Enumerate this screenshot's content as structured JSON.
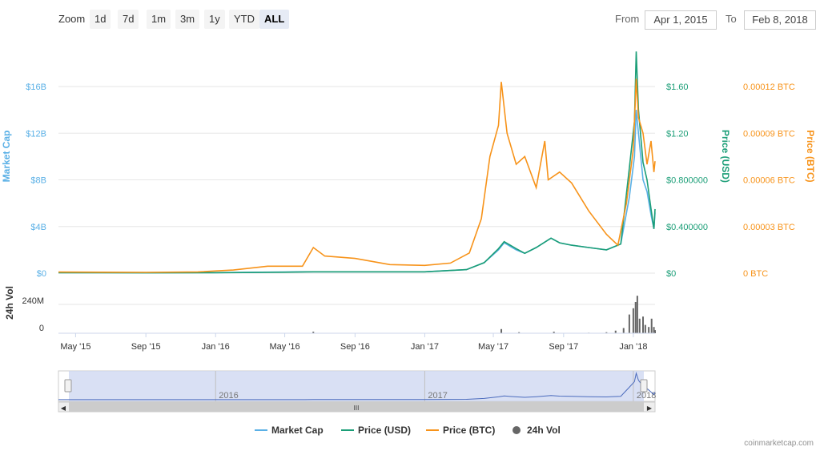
{
  "toolbar": {
    "zoom_label": "Zoom",
    "zoom_buttons": [
      "1d",
      "7d",
      "1m",
      "3m",
      "1y",
      "YTD",
      "ALL"
    ],
    "active_zoom": "ALL",
    "from_label": "From",
    "from_value": "Apr 1, 2015",
    "to_label": "To",
    "to_value": "Feb 8, 2018"
  },
  "colors": {
    "market_cap": "#5ab0e6",
    "price_usd": "#1b9e77",
    "price_btc": "#f7931a",
    "volume": "#666666",
    "navigator_fill": "#ccd6f0"
  },
  "chart_data": {
    "type": "line",
    "x_tick_labels": [
      "May '15",
      "Sep '15",
      "Jan '16",
      "May '16",
      "Sep '16",
      "Jan '17",
      "May '17",
      "Sep '17",
      "Jan '18"
    ],
    "axes": {
      "market_cap": {
        "label": "Market Cap",
        "ticks": [
          "$0",
          "$4B",
          "$8B",
          "$12B",
          "$16B"
        ],
        "ylim": [
          0,
          16000000000
        ]
      },
      "price_usd": {
        "label": "Price (USD)",
        "ticks": [
          "$0",
          "$0.400000",
          "$0.800000",
          "$1.20",
          "$1.60"
        ],
        "ylim": [
          0,
          1.6
        ]
      },
      "price_btc": {
        "label": "Price (BTC)",
        "ticks": [
          "0 BTC",
          "0.00003 BTC",
          "0.00006 BTC",
          "0.00009 BTC",
          "0.00012 BTC"
        ],
        "ylim": [
          0,
          0.00012
        ]
      },
      "volume": {
        "label": "24h Vol",
        "ticks": [
          "0",
          "240M"
        ]
      }
    },
    "series": [
      {
        "name": "Market Cap",
        "points": [
          [
            "2015-04-01",
            50000000.0
          ],
          [
            "2015-09-01",
            40000000.0
          ],
          [
            "2016-01-01",
            50000000.0
          ],
          [
            "2016-05-01",
            100000000.0
          ],
          [
            "2016-06-20",
            120000000.0
          ],
          [
            "2016-09-01",
            120000000.0
          ],
          [
            "2017-01-01",
            120000000.0
          ],
          [
            "2017-03-15",
            300000000.0
          ],
          [
            "2017-04-15",
            900000000.0
          ],
          [
            "2017-05-10",
            2000000000.0
          ],
          [
            "2017-05-20",
            2600000000.0
          ],
          [
            "2017-06-10",
            2000000000.0
          ],
          [
            "2017-06-25",
            1700000000.0
          ],
          [
            "2017-07-15",
            2200000000.0
          ],
          [
            "2017-08-10",
            3000000000.0
          ],
          [
            "2017-08-25",
            2600000000.0
          ],
          [
            "2017-09-15",
            2400000000.0
          ],
          [
            "2017-10-15",
            2200000000.0
          ],
          [
            "2017-11-15",
            2000000000.0
          ],
          [
            "2017-12-10",
            2500000000.0
          ],
          [
            "2017-12-25",
            6500000000.0
          ],
          [
            "2018-01-03",
            10000000000.0
          ],
          [
            "2018-01-06",
            14000000000.0
          ],
          [
            "2018-01-10",
            12000000000.0
          ],
          [
            "2018-01-18",
            8000000000.0
          ],
          [
            "2018-01-25",
            7000000000.0
          ],
          [
            "2018-02-01",
            5000000000.0
          ],
          [
            "2018-02-06",
            3800000000.0
          ],
          [
            "2018-02-08",
            5200000000.0
          ]
        ]
      },
      {
        "name": "Price (USD)",
        "points": [
          [
            "2015-04-01",
            0.004
          ],
          [
            "2015-09-01",
            0.003
          ],
          [
            "2016-01-01",
            0.004
          ],
          [
            "2016-05-01",
            0.008
          ],
          [
            "2016-06-20",
            0.012
          ],
          [
            "2016-09-01",
            0.012
          ],
          [
            "2017-01-01",
            0.012
          ],
          [
            "2017-03-15",
            0.03
          ],
          [
            "2017-04-15",
            0.09
          ],
          [
            "2017-05-10",
            0.21
          ],
          [
            "2017-05-20",
            0.27
          ],
          [
            "2017-06-10",
            0.21
          ],
          [
            "2017-06-25",
            0.17
          ],
          [
            "2017-07-15",
            0.22
          ],
          [
            "2017-08-10",
            0.3
          ],
          [
            "2017-08-25",
            0.26
          ],
          [
            "2017-09-15",
            0.24
          ],
          [
            "2017-10-15",
            0.22
          ],
          [
            "2017-11-15",
            0.2
          ],
          [
            "2017-12-10",
            0.25
          ],
          [
            "2017-12-25",
            0.9
          ],
          [
            "2018-01-03",
            1.3
          ],
          [
            "2018-01-06",
            1.9
          ],
          [
            "2018-01-10",
            1.4
          ],
          [
            "2018-01-18",
            0.95
          ],
          [
            "2018-01-25",
            0.8
          ],
          [
            "2018-02-01",
            0.55
          ],
          [
            "2018-02-06",
            0.38
          ],
          [
            "2018-02-08",
            0.55
          ]
        ]
      },
      {
        "name": "Price (BTC)",
        "points": [
          [
            "2015-04-01",
            7e-07
          ],
          [
            "2015-09-01",
            5e-07
          ],
          [
            "2015-12-01",
            8e-07
          ],
          [
            "2016-02-01",
            2e-06
          ],
          [
            "2016-04-01",
            4.5e-06
          ],
          [
            "2016-06-01",
            4.5e-06
          ],
          [
            "2016-06-20",
            1.65e-05
          ],
          [
            "2016-07-10",
            1.1e-05
          ],
          [
            "2016-09-01",
            9.5e-06
          ],
          [
            "2016-11-01",
            5.5e-06
          ],
          [
            "2017-01-01",
            5e-06
          ],
          [
            "2017-02-15",
            6.5e-06
          ],
          [
            "2017-03-20",
            1.3e-05
          ],
          [
            "2017-04-10",
            3.5e-05
          ],
          [
            "2017-04-25",
            7.5e-05
          ],
          [
            "2017-05-10",
            9.5e-05
          ],
          [
            "2017-05-15",
            0.000123
          ],
          [
            "2017-05-25",
            9e-05
          ],
          [
            "2017-06-10",
            7e-05
          ],
          [
            "2017-06-25",
            7.5e-05
          ],
          [
            "2017-07-15",
            5.5e-05
          ],
          [
            "2017-07-30",
            8.5e-05
          ],
          [
            "2017-08-05",
            6e-05
          ],
          [
            "2017-08-25",
            6.5e-05
          ],
          [
            "2017-09-15",
            5.8e-05
          ],
          [
            "2017-10-15",
            4e-05
          ],
          [
            "2017-11-15",
            2.5e-05
          ],
          [
            "2017-12-05",
            1.8e-05
          ],
          [
            "2017-12-20",
            4.5e-05
          ],
          [
            "2018-01-01",
            8e-05
          ],
          [
            "2018-01-06",
            0.000125
          ],
          [
            "2018-01-10",
            0.0001
          ],
          [
            "2018-01-18",
            9e-05
          ],
          [
            "2018-01-25",
            7e-05
          ],
          [
            "2018-02-01",
            8.5e-05
          ],
          [
            "2018-02-06",
            6.5e-05
          ],
          [
            "2018-02-08",
            7.2e-05
          ]
        ]
      },
      {
        "name": "24h Vol",
        "points": [
          [
            "2016-06-20",
            15000000.0
          ],
          [
            "2017-05-15",
            40000000.0
          ],
          [
            "2017-06-15",
            10000000.0
          ],
          [
            "2017-08-15",
            15000000.0
          ],
          [
            "2017-10-15",
            5000000.0
          ],
          [
            "2017-11-15",
            10000000.0
          ],
          [
            "2017-12-01",
            25000000.0
          ],
          [
            "2017-12-15",
            50000000.0
          ],
          [
            "2017-12-25",
            180000000.0
          ],
          [
            "2018-01-01",
            240000000.0
          ],
          [
            "2018-01-05",
            300000000.0
          ],
          [
            "2018-01-08",
            360000000.0
          ],
          [
            "2018-01-12",
            140000000.0
          ],
          [
            "2018-01-18",
            160000000.0
          ],
          [
            "2018-01-22",
            80000000.0
          ],
          [
            "2018-01-28",
            60000000.0
          ],
          [
            "2018-02-02",
            140000000.0
          ],
          [
            "2018-02-06",
            60000000.0
          ],
          [
            "2018-02-08",
            30000000.0
          ]
        ]
      }
    ],
    "navigator": {
      "labels": [
        "2016",
        "2017",
        "2018"
      ]
    },
    "legend": [
      "Market Cap",
      "Price (USD)",
      "Price (BTC)",
      "24h Vol"
    ],
    "grid": true,
    "legend_position": "bottom"
  },
  "credit": "coinmarketcap.com"
}
